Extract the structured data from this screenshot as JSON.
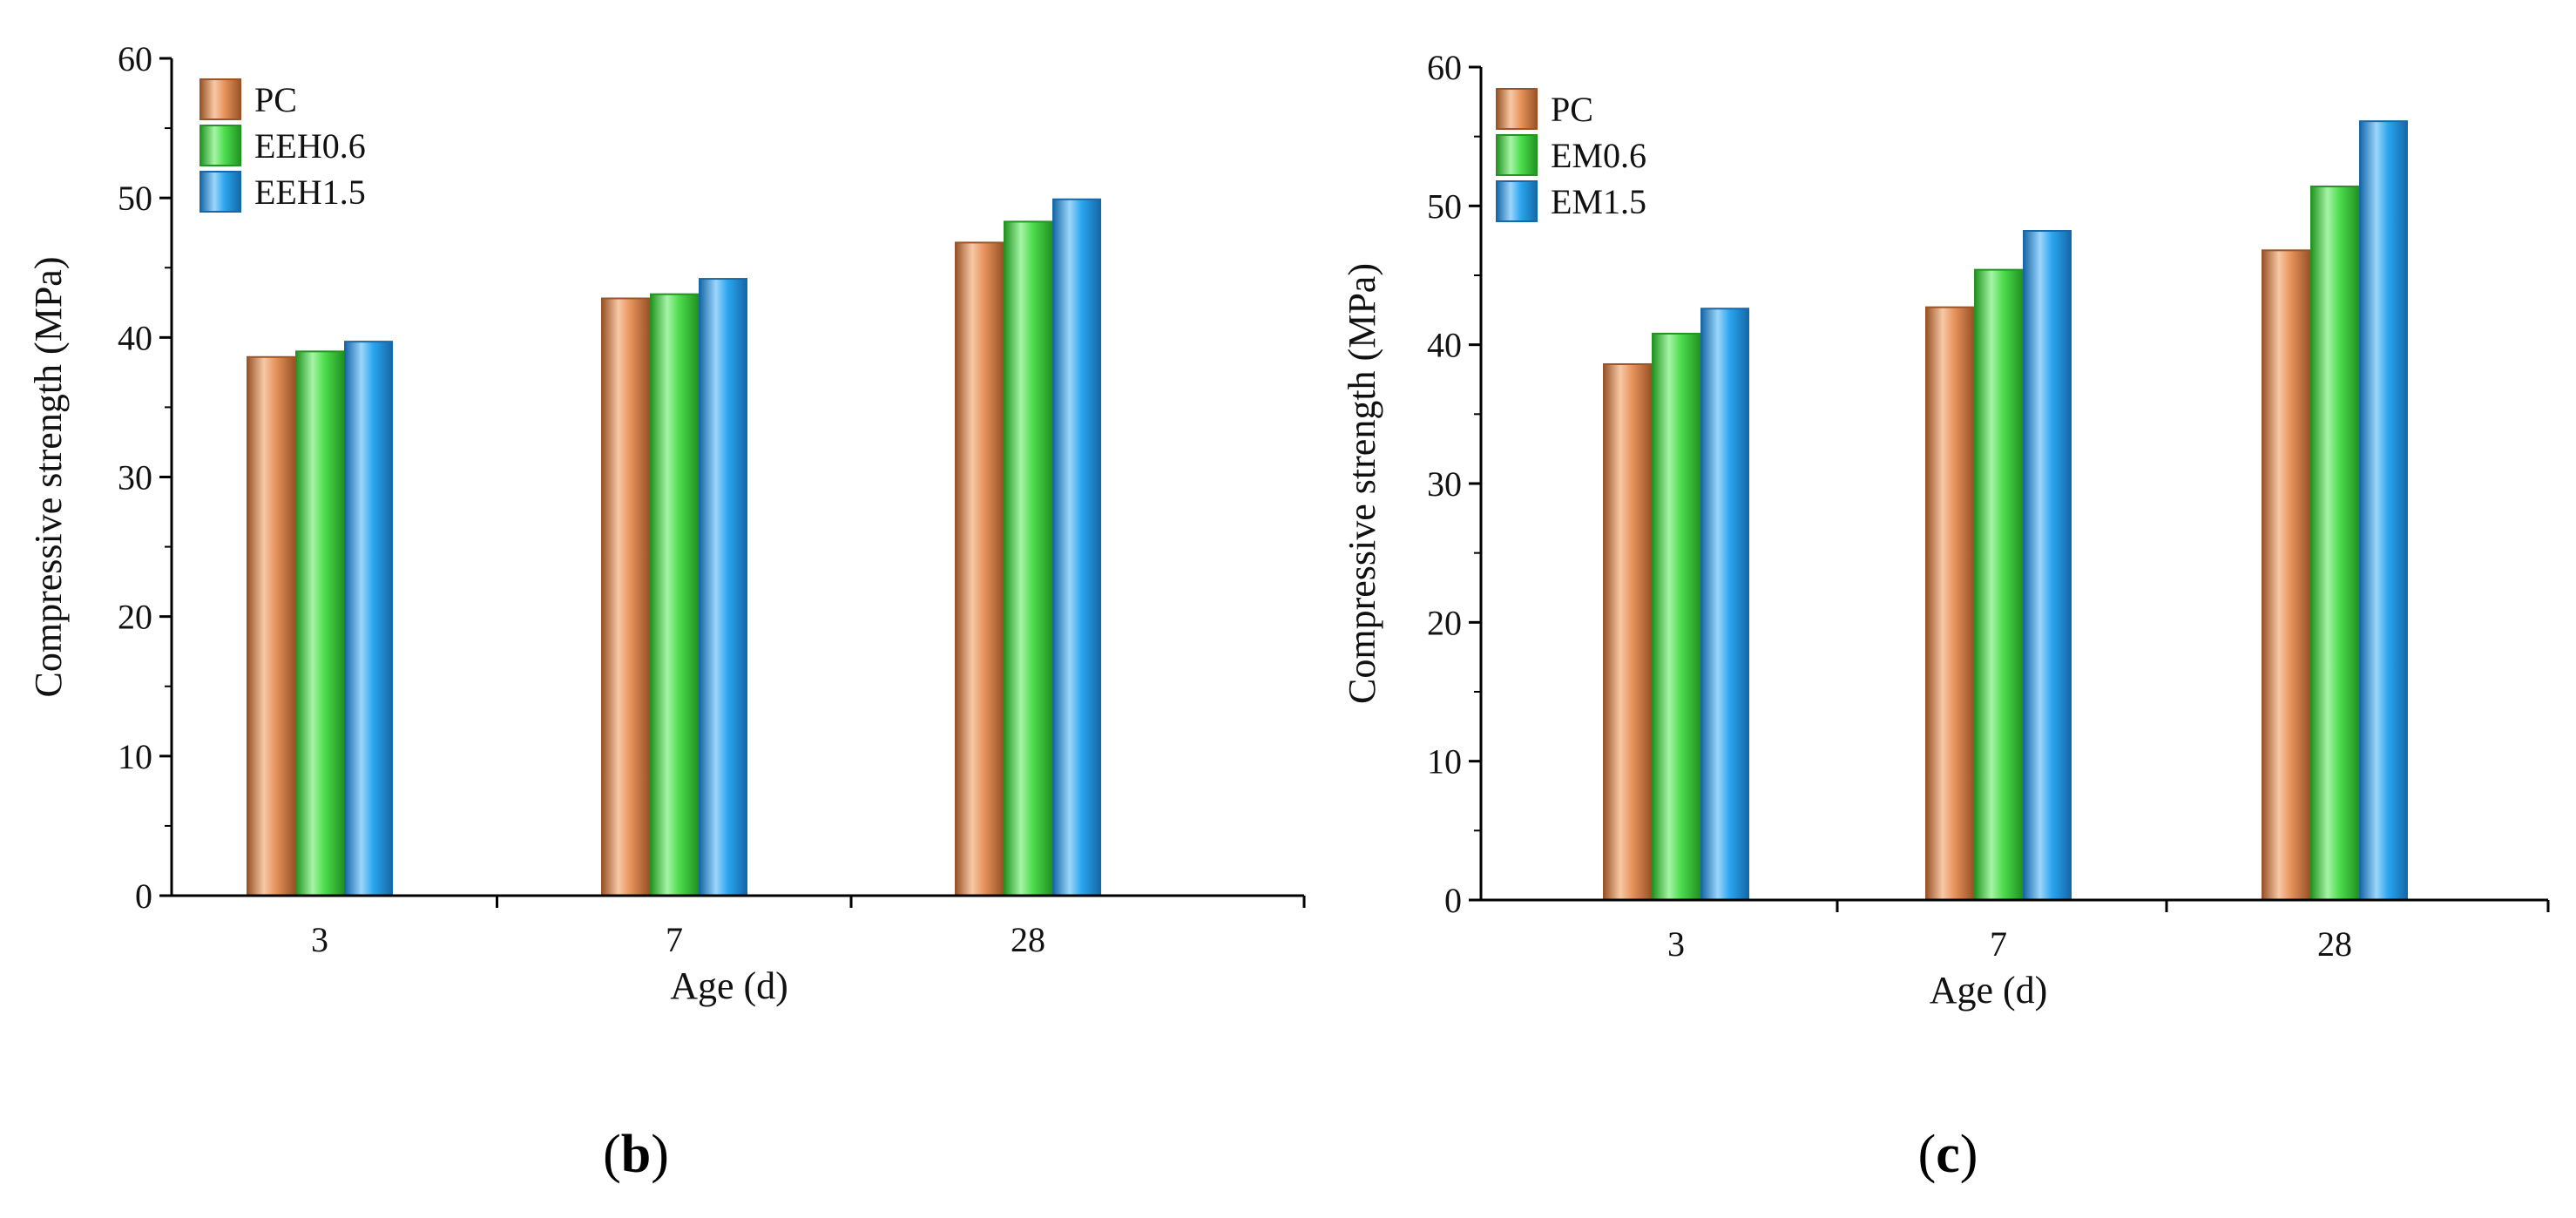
{
  "colors": {
    "series_fill": [
      "#e8935c",
      "#4ddd4d",
      "#2aa6f0"
    ],
    "series_dark": [
      "#9a5428",
      "#229422",
      "#1668a8"
    ],
    "series_light": [
      "#f7c9a6",
      "#a6f5a6",
      "#9cd6fb"
    ],
    "axis": "#000000"
  },
  "chart_data": [
    {
      "type": "bar",
      "panel_open": "(",
      "panel_letter": "b",
      "panel_close": ")",
      "title": "",
      "xlabel": "Age (d)",
      "ylabel": "Compressive strength (MPa)",
      "ylim": [
        0,
        60
      ],
      "yticks": [
        "0",
        "10",
        "20",
        "30",
        "40",
        "50",
        "60"
      ],
      "categories": [
        "3",
        "7",
        "28"
      ],
      "legend_position": "top-left",
      "series": [
        {
          "name": "PC",
          "values": [
            38.6,
            42.8,
            46.8
          ]
        },
        {
          "name": "EEH0.6",
          "values": [
            39.0,
            43.1,
            48.3
          ]
        },
        {
          "name": "EEH1.5",
          "values": [
            39.7,
            44.2,
            49.9
          ]
        }
      ]
    },
    {
      "type": "bar",
      "panel_open": "(",
      "panel_letter": "c",
      "panel_close": ")",
      "title": "",
      "xlabel": "Age (d)",
      "ylabel": "Compressive strength (MPa)",
      "ylim": [
        0,
        60
      ],
      "yticks": [
        "0",
        "10",
        "20",
        "30",
        "40",
        "50",
        "60"
      ],
      "categories": [
        "3",
        "7",
        "28"
      ],
      "legend_position": "top-left",
      "series": [
        {
          "name": "PC",
          "values": [
            38.6,
            42.7,
            46.8
          ]
        },
        {
          "name": "EM0.6",
          "values": [
            40.8,
            45.4,
            51.4
          ]
        },
        {
          "name": "EM1.5",
          "values": [
            42.6,
            48.2,
            56.1
          ]
        }
      ]
    }
  ]
}
